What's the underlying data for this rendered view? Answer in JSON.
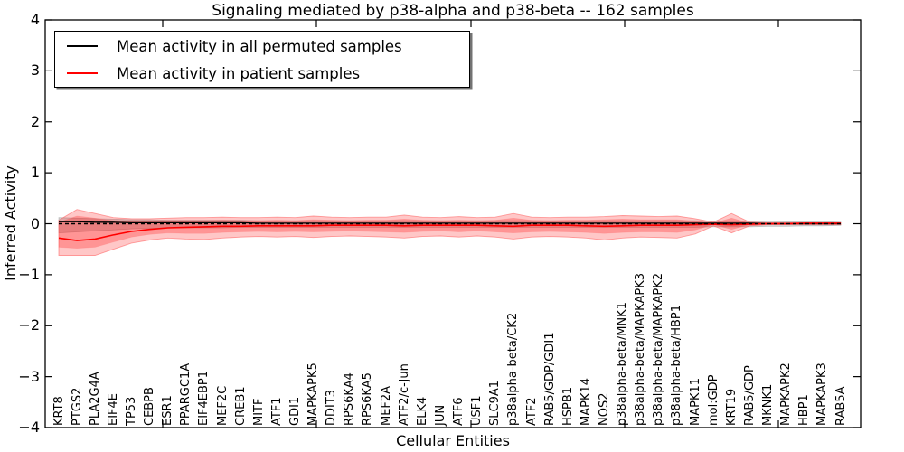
{
  "title": "Signaling mediated by p38-alpha and p38-beta -- 162 samples",
  "axes": {
    "xlabel": "Cellular Entities",
    "ylabel": "Inferred Activity",
    "ytick_labels": [
      "4",
      "3",
      "2",
      "1",
      "0",
      "−1",
      "−2",
      "−3",
      "−4"
    ]
  },
  "legend": {
    "items": [
      {
        "label": "Mean activity in all permuted samples",
        "color": "#000000"
      },
      {
        "label": "Mean activity in patient samples",
        "color": "#ff0000"
      }
    ]
  },
  "colors": {
    "patient_line": "#ff0000",
    "permuted_line": "#000000",
    "patient_band_fill": "#ff0000",
    "permuted_band_fill": "#999999",
    "frame": "#000000"
  },
  "chart_data": {
    "type": "line",
    "title": "Signaling mediated by p38-alpha and p38-beta -- 162 samples",
    "xlabel": "Cellular Entities",
    "ylabel": "Inferred Activity",
    "ylim": [
      -4,
      4
    ],
    "yticks": [
      4,
      3,
      2,
      1,
      0,
      -1,
      -2,
      -3,
      -4
    ],
    "grid": false,
    "legend_position": "upper left",
    "zero_reference_line": 0,
    "categories": [
      "KRT8",
      "PTGS2",
      "PLA2G4A",
      "EIF4E",
      "TP53",
      "CEBPB",
      "ESR1",
      "PPARGC1A",
      "EIF4EBP1",
      "MEF2C",
      "CREB1",
      "MITF",
      "ATF1",
      "GDI1",
      "MAPKAPK5",
      "DDIT3",
      "RPS6KA4",
      "RPS6KA5",
      "MEF2A",
      "ATF2/c-Jun",
      "ELK4",
      "JUN",
      "ATF6",
      "USF1",
      "SLC9A1",
      "p38alpha-beta/CK2",
      "ATF2",
      "RAB5/GDP/GDI1",
      "HSPB1",
      "MAPK14",
      "NOS2",
      "p38alpha-beta/MNK1",
      "p38alpha-beta/MAPKAPK3",
      "p38alpha-beta/MAPKAPK2",
      "p38alpha-beta/HBP1",
      "MAPK11",
      "mol:GDP",
      "KRT19",
      "RAB5/GDP",
      "MKNK1",
      "MAPKAPK2",
      "HBP1",
      "MAPKAPK3",
      "RAB5A"
    ],
    "series": [
      {
        "name": "Mean activity in all permuted samples",
        "color": "#000000",
        "style": "solid",
        "values": [
          0.04,
          0.04,
          0.03,
          0.03,
          0.02,
          0.02,
          0.02,
          0.02,
          0.02,
          0.02,
          0.02,
          0.01,
          0.01,
          0.01,
          0.01,
          0.01,
          0.01,
          0.01,
          0.01,
          0.01,
          0.01,
          0.01,
          0.01,
          0.01,
          0.01,
          0.01,
          0.01,
          0.01,
          0.01,
          0.01,
          0.01,
          0.01,
          0.01,
          0.01,
          0.01,
          0.01,
          0.01,
          0.01,
          0.01,
          0.0,
          0.0,
          0.0,
          0.0,
          0.0
        ]
      },
      {
        "name": "Mean activity in patient samples",
        "color": "#ff0000",
        "style": "solid",
        "values": [
          -0.28,
          -0.33,
          -0.3,
          -0.22,
          -0.15,
          -0.11,
          -0.08,
          -0.07,
          -0.06,
          -0.05,
          -0.05,
          -0.04,
          -0.04,
          -0.04,
          -0.04,
          -0.03,
          -0.03,
          -0.03,
          -0.03,
          -0.04,
          -0.03,
          -0.03,
          -0.03,
          -0.03,
          -0.04,
          -0.05,
          -0.03,
          -0.03,
          -0.03,
          -0.04,
          -0.05,
          -0.04,
          -0.03,
          -0.03,
          -0.03,
          -0.02,
          -0.01,
          -0.02,
          -0.01,
          0.0,
          0.0,
          0.01,
          0.01,
          0.01
        ]
      }
    ],
    "bands": [
      {
        "name": "permuted-samples-std-band",
        "color": "#999999",
        "top": [
          0.12,
          0.11,
          0.1,
          0.09,
          0.08,
          0.08,
          0.07,
          0.07,
          0.07,
          0.07,
          0.07,
          0.06,
          0.06,
          0.06,
          0.06,
          0.06,
          0.06,
          0.06,
          0.06,
          0.06,
          0.06,
          0.06,
          0.06,
          0.06,
          0.06,
          0.06,
          0.06,
          0.06,
          0.06,
          0.06,
          0.06,
          0.06,
          0.06,
          0.06,
          0.06,
          0.06,
          0.05,
          0.05,
          0.05,
          0.05,
          0.04,
          0.04,
          0.04,
          0.03
        ],
        "bottom": [
          -0.18,
          -0.16,
          -0.14,
          -0.12,
          -0.1,
          -0.09,
          -0.08,
          -0.08,
          -0.08,
          -0.08,
          -0.07,
          -0.07,
          -0.07,
          -0.07,
          -0.07,
          -0.07,
          -0.07,
          -0.07,
          -0.07,
          -0.07,
          -0.07,
          -0.07,
          -0.07,
          -0.07,
          -0.07,
          -0.07,
          -0.07,
          -0.07,
          -0.07,
          -0.07,
          -0.07,
          -0.07,
          -0.07,
          -0.07,
          -0.07,
          -0.07,
          -0.06,
          -0.06,
          -0.06,
          -0.05,
          -0.05,
          -0.04,
          -0.04,
          -0.03
        ]
      },
      {
        "name": "patient-samples-outer-band",
        "color": "#ff0000",
        "top": [
          0.07,
          0.28,
          0.2,
          0.12,
          0.1,
          0.1,
          0.11,
          0.12,
          0.12,
          0.13,
          0.12,
          0.12,
          0.13,
          0.12,
          0.15,
          0.13,
          0.12,
          0.13,
          0.13,
          0.17,
          0.13,
          0.12,
          0.14,
          0.12,
          0.13,
          0.2,
          0.13,
          0.12,
          0.13,
          0.13,
          0.14,
          0.16,
          0.15,
          0.14,
          0.15,
          0.1,
          0.03,
          0.2,
          0.03,
          0.02,
          0.02,
          0.02,
          0.02,
          0.02
        ],
        "bottom": [
          -0.62,
          -0.62,
          -0.62,
          -0.5,
          -0.38,
          -0.32,
          -0.28,
          -0.3,
          -0.31,
          -0.28,
          -0.26,
          -0.25,
          -0.26,
          -0.25,
          -0.27,
          -0.25,
          -0.24,
          -0.25,
          -0.26,
          -0.28,
          -0.25,
          -0.24,
          -0.26,
          -0.24,
          -0.26,
          -0.3,
          -0.26,
          -0.25,
          -0.26,
          -0.28,
          -0.32,
          -0.28,
          -0.26,
          -0.27,
          -0.28,
          -0.2,
          -0.04,
          -0.18,
          -0.04,
          -0.02,
          -0.02,
          -0.02,
          -0.02,
          -0.02
        ]
      },
      {
        "name": "patient-samples-inner-band",
        "color": "#ff0000",
        "top": [
          0.03,
          0.15,
          0.11,
          0.06,
          0.05,
          0.05,
          0.06,
          0.06,
          0.06,
          0.07,
          0.06,
          0.06,
          0.07,
          0.06,
          0.08,
          0.07,
          0.06,
          0.07,
          0.07,
          0.09,
          0.07,
          0.06,
          0.07,
          0.06,
          0.07,
          0.11,
          0.07,
          0.06,
          0.07,
          0.07,
          0.08,
          0.09,
          0.08,
          0.08,
          0.08,
          0.05,
          0.01,
          0.11,
          0.01,
          0.01,
          0.01,
          0.01,
          0.01,
          0.01
        ],
        "bottom": [
          -0.46,
          -0.48,
          -0.46,
          -0.36,
          -0.26,
          -0.21,
          -0.18,
          -0.19,
          -0.19,
          -0.17,
          -0.16,
          -0.15,
          -0.16,
          -0.15,
          -0.16,
          -0.15,
          -0.14,
          -0.15,
          -0.16,
          -0.17,
          -0.15,
          -0.14,
          -0.16,
          -0.14,
          -0.16,
          -0.18,
          -0.16,
          -0.15,
          -0.16,
          -0.17,
          -0.19,
          -0.17,
          -0.16,
          -0.16,
          -0.17,
          -0.12,
          -0.02,
          -0.11,
          -0.02,
          -0.01,
          -0.01,
          -0.01,
          -0.01,
          -0.01
        ]
      }
    ]
  }
}
